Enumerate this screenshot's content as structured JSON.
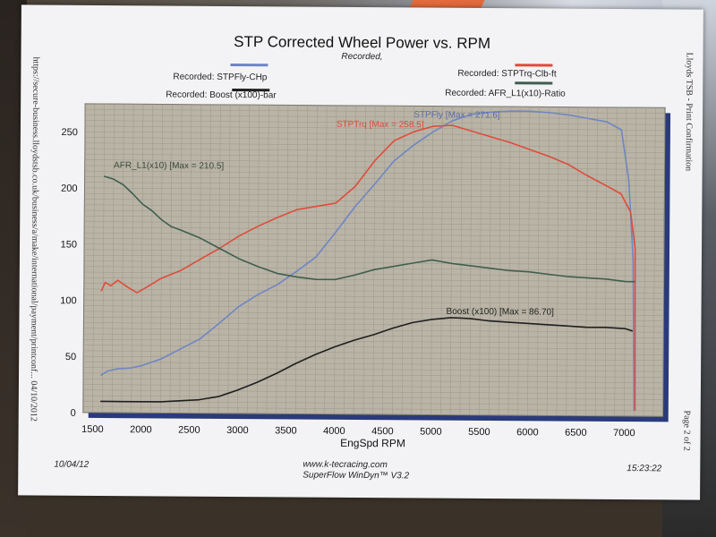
{
  "colors": {
    "stpfly": "#6f86c4",
    "stptrq": "#e04c3a",
    "boost": "#1f1f1f",
    "afr": "#3f5e4e",
    "plot_bg": "#b9b4a6"
  },
  "chart_data": {
    "type": "line",
    "title": "STP Corrected Wheel Power vs. RPM",
    "subtitle": "Recorded,",
    "xlabel": "EngSpd RPM",
    "ylabel": "",
    "xlim": [
      1400,
      7400
    ],
    "ylim": [
      0,
      275
    ],
    "xticks": [
      1500,
      2000,
      2500,
      3000,
      3500,
      4000,
      4500,
      5000,
      5500,
      6000,
      6500,
      7000
    ],
    "yticks": [
      0,
      50,
      100,
      150,
      200,
      250
    ],
    "grid": true,
    "legend": [
      {
        "label": "Recorded: STPFly-CHp",
        "position": "top-left"
      },
      {
        "label": "Recorded: Boost (x100)-bar",
        "position": "top-left"
      },
      {
        "label": "Recorded: STPTrq-Clb-ft",
        "position": "top-right"
      },
      {
        "label": "Recorded: AFR_L1(x10)-Ratio",
        "position": "top-right"
      }
    ],
    "annotations": [
      {
        "text": "AFR_L1(x10) [Max = 210.5]",
        "x": 1700,
        "y": 218
      },
      {
        "text": "STPTrq [Max = 258.5]",
        "x": 4000,
        "y": 256
      },
      {
        "text": "STPFly [Max = 271.6]",
        "x": 4800,
        "y": 265
      },
      {
        "text": "Boost (x100) [Max = 86.70]",
        "x": 5150,
        "y": 90
      }
    ],
    "series": [
      {
        "name": "STPFly",
        "color_key": "stpfly",
        "x": [
          1580,
          1650,
          1750,
          1900,
          2000,
          2200,
          2400,
          2600,
          2800,
          3000,
          3200,
          3400,
          3600,
          3800,
          4000,
          4200,
          4400,
          4600,
          4800,
          5000,
          5200,
          5400,
          5600,
          5800,
          6000,
          6200,
          6400,
          6600,
          6800,
          6950,
          7030,
          7080,
          7100
        ],
        "y": [
          33,
          37,
          39,
          40,
          42,
          48,
          57,
          66,
          80,
          95,
          106,
          115,
          127,
          140,
          162,
          185,
          205,
          226,
          240,
          252,
          262,
          268,
          270,
          271,
          271,
          270,
          268,
          265,
          262,
          255,
          210,
          140,
          5
        ]
      },
      {
        "name": "STPTrq",
        "color_key": "stptrq",
        "x": [
          1580,
          1620,
          1680,
          1750,
          1850,
          1950,
          2050,
          2200,
          2400,
          2600,
          2800,
          3000,
          3200,
          3400,
          3600,
          3800,
          4000,
          4200,
          4400,
          4600,
          4800,
          5000,
          5200,
          5400,
          5600,
          5800,
          6000,
          6200,
          6400,
          6600,
          6800,
          6950,
          7050,
          7100,
          7110
        ],
        "y": [
          108,
          116,
          113,
          118,
          112,
          107,
          112,
          120,
          127,
          137,
          147,
          158,
          167,
          175,
          182,
          185,
          188,
          203,
          226,
          244,
          252,
          257,
          258,
          253,
          248,
          243,
          237,
          231,
          224,
          214,
          205,
          198,
          182,
          150,
          5
        ]
      },
      {
        "name": "Boost (x100)",
        "color_key": "boost",
        "x": [
          1580,
          1800,
          2000,
          2200,
          2400,
          2600,
          2800,
          3000,
          3200,
          3400,
          3600,
          3800,
          4000,
          4200,
          4400,
          4600,
          4800,
          5000,
          5200,
          5400,
          5600,
          5800,
          6000,
          6200,
          6400,
          6600,
          6800,
          7000,
          7080
        ],
        "y": [
          10,
          10,
          10,
          10,
          11,
          12,
          15,
          21,
          28,
          36,
          45,
          53,
          60,
          66,
          71,
          77,
          82,
          85,
          86.7,
          86,
          84,
          83,
          82,
          81,
          80,
          79,
          79,
          78,
          76
        ]
      },
      {
        "name": "AFR_L1(x10)",
        "color_key": "afr",
        "x": [
          1600,
          1700,
          1800,
          1900,
          2000,
          2100,
          2200,
          2300,
          2400,
          2600,
          2800,
          3000,
          3200,
          3400,
          3600,
          3800,
          4000,
          4200,
          4400,
          4600,
          4800,
          5000,
          5200,
          5400,
          5600,
          5800,
          6000,
          6200,
          6400,
          6600,
          6800,
          7000,
          7100
        ],
        "y": [
          210.5,
          208,
          203,
          195,
          186,
          180,
          172,
          166,
          163,
          156,
          147,
          138,
          131,
          125,
          122,
          120,
          120,
          124,
          129,
          132,
          135,
          138,
          135,
          133,
          131,
          129,
          128,
          126,
          124,
          123,
          122,
          120,
          120
        ]
      }
    ]
  },
  "side_left": "https://secure-business.lloydstsb.co.uk/business/a/make/international/payment/printconf... 04/10/2012",
  "side_right_top": "Lloyds TSB - Print Confirmation",
  "side_right_bottom": "Page 2 of 2",
  "footer": {
    "date": "10/04/12",
    "website": "www.k-tecracing.com",
    "software": "SuperFlow WinDyn™ V3.2",
    "time": "15:23:22"
  }
}
